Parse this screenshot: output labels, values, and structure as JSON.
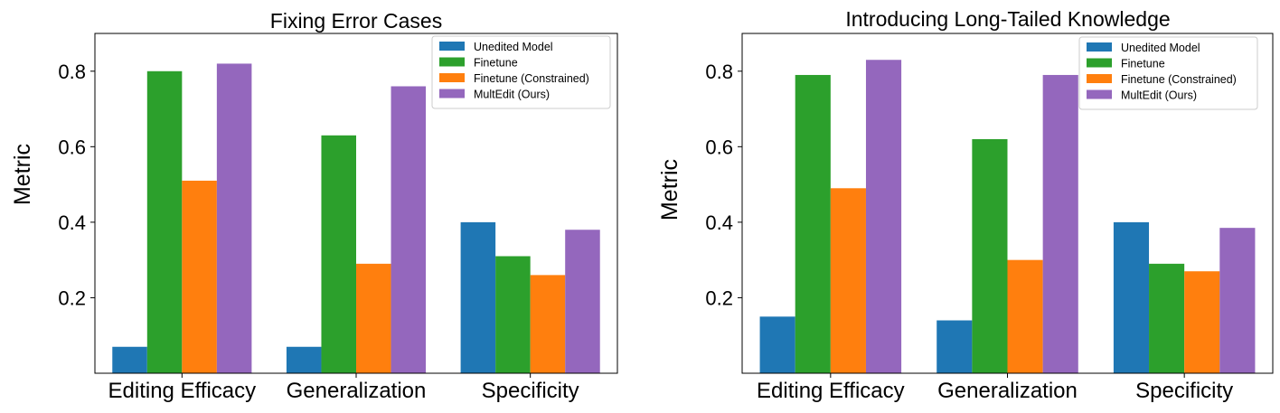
{
  "colors": {
    "Unedited Model": "#1f77b4",
    "Finetune": "#2ca02c",
    "Finetune (Constrained)": "#ff7f0e",
    "MultEdit (Ours)": "#9467bd"
  },
  "chart_data": [
    {
      "type": "bar",
      "title": "Fixing Error Cases",
      "ylabel": "Metric",
      "xlabel": "",
      "ylim": [
        0,
        0.9
      ],
      "yticks": [
        "0.2",
        "0.4",
        "0.6",
        "0.8"
      ],
      "grid": false,
      "legend": "top-right",
      "categories": [
        "Editing Efficacy",
        "Generalization",
        "Specificity"
      ],
      "series": [
        {
          "name": "Unedited Model",
          "values": [
            0.07,
            0.07,
            0.4
          ]
        },
        {
          "name": "Finetune",
          "values": [
            0.8,
            0.63,
            0.31
          ]
        },
        {
          "name": "Finetune (Constrained)",
          "values": [
            0.51,
            0.29,
            0.26
          ]
        },
        {
          "name": "MultEdit (Ours)",
          "values": [
            0.82,
            0.76,
            0.38
          ]
        }
      ]
    },
    {
      "type": "bar",
      "title": "Introducing Long-Tailed Knowledge",
      "ylabel": "Metric",
      "xlabel": "",
      "ylim": [
        0,
        0.9
      ],
      "yticks": [
        "0.2",
        "0.4",
        "0.6",
        "0.8"
      ],
      "grid": false,
      "legend": "top-right",
      "categories": [
        "Editing Efficacy",
        "Generalization",
        "Specificity"
      ],
      "series": [
        {
          "name": "Unedited Model",
          "values": [
            0.15,
            0.14,
            0.4
          ]
        },
        {
          "name": "Finetune",
          "values": [
            0.79,
            0.62,
            0.29
          ]
        },
        {
          "name": "Finetune (Constrained)",
          "values": [
            0.49,
            0.3,
            0.27
          ]
        },
        {
          "name": "MultEdit (Ours)",
          "values": [
            0.83,
            0.79,
            0.385
          ]
        }
      ]
    }
  ]
}
